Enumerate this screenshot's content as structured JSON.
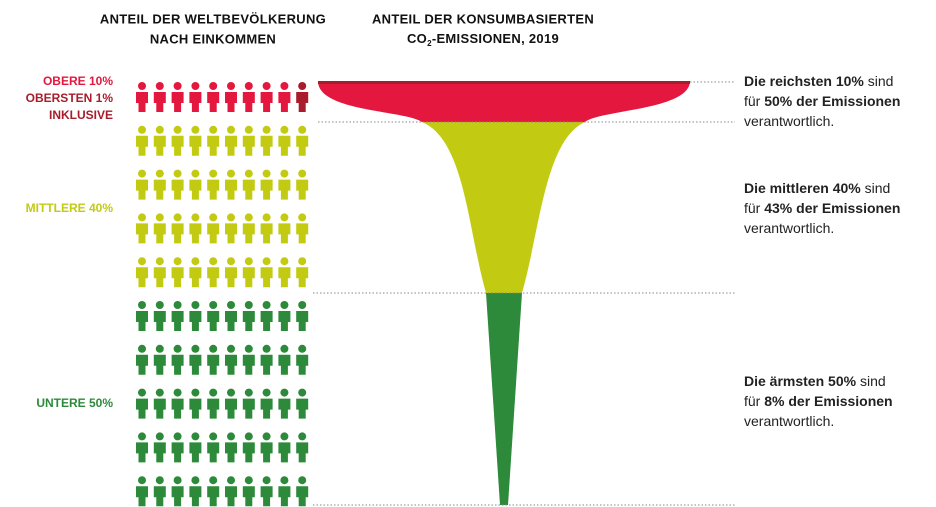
{
  "headers": {
    "left": [
      "ANTEIL DER WELTBEVÖLKERUNG",
      "NACH EINKOMMEN"
    ],
    "right": {
      "line1": "ANTEIL DER KONSUMBASIERTEN",
      "co": "CO",
      "sub": "2",
      "rest": "-EMISSIONEN, 2019"
    }
  },
  "groups": [
    {
      "labels": [
        {
          "text": "OBERE 10%",
          "color": "#e4173e"
        },
        {
          "text": "OBERSTEN 1%",
          "color": "#a81c2b"
        },
        {
          "text": "INKLUSIVE",
          "color": "#a81c2b"
        }
      ],
      "description": [
        [
          {
            "text": "Die reichsten 10%",
            "bold": true
          },
          {
            "text": " sind",
            "bold": false
          }
        ],
        [
          {
            "text": "für ",
            "bold": false
          },
          {
            "text": "50% der Emissionen",
            "bold": true
          }
        ],
        [
          {
            "text": "verantwortlich.",
            "bold": false
          }
        ]
      ]
    },
    {
      "labels": [
        {
          "text": "MITTLERE 40%",
          "color": "#c2cb12"
        }
      ],
      "description": [
        [
          {
            "text": "Die mittleren 40%",
            "bold": true
          },
          {
            "text": " sind",
            "bold": false
          }
        ],
        [
          {
            "text": "für ",
            "bold": false
          },
          {
            "text": "43% der Emissionen",
            "bold": true
          }
        ],
        [
          {
            "text": "verantwortlich.",
            "bold": false
          }
        ]
      ]
    },
    {
      "labels": [
        {
          "text": "UNTERE 50%",
          "color": "#2c8a3a"
        }
      ],
      "description": [
        [
          {
            "text": "Die ärmsten 50%",
            "bold": true
          },
          {
            "text": " sind",
            "bold": false
          }
        ],
        [
          {
            "text": "für ",
            "bold": false
          },
          {
            "text": "8% der Emissionen",
            "bold": true
          }
        ],
        [
          {
            "text": "verantwortlich.",
            "bold": false
          }
        ]
      ]
    }
  ]
}
